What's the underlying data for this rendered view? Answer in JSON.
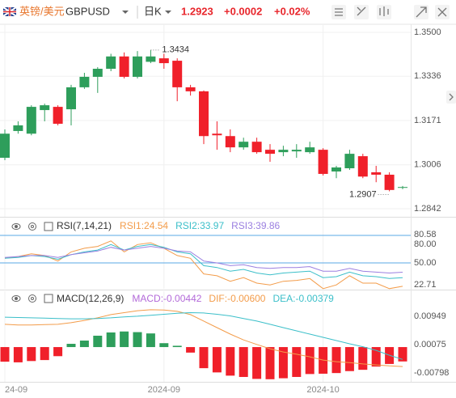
{
  "header": {
    "pair": "英镑/美元",
    "symbol": "GBPUSD",
    "period": "日K",
    "price": "1.2923",
    "change": "+0.0002",
    "change_pct": "+0.02%"
  },
  "chart_data": [
    {
      "type": "candlestick",
      "categories": [
        "24-09",
        null,
        null,
        null,
        null,
        null,
        null,
        null,
        null,
        null,
        null,
        null,
        "2024-09",
        null,
        null,
        null,
        null,
        null,
        null,
        null,
        null,
        null,
        null,
        null,
        "2024-10",
        null,
        null,
        null,
        null,
        null,
        null
      ],
      "open": [
        1.3032,
        1.3132,
        1.3122,
        1.321,
        1.3222,
        1.3213,
        1.3295,
        1.3334,
        1.3364,
        1.341,
        1.3334,
        1.339,
        1.3403,
        1.3394,
        1.3295,
        1.328,
        1.3122,
        1.3113,
        1.3071,
        1.3092,
        1.3062,
        1.3053,
        1.3056,
        1.3053,
        1.3062,
        1.2981,
        1.2993,
        1.3038,
        1.2978,
        1.2969,
        1.2921
      ],
      "high": [
        1.3138,
        1.3168,
        1.3228,
        1.3234,
        1.3228,
        1.3304,
        1.3349,
        1.337,
        1.342,
        1.3425,
        1.343,
        1.3434,
        1.342,
        1.3403,
        1.3304,
        1.3283,
        1.3168,
        1.3138,
        1.3107,
        1.3107,
        1.3083,
        1.3077,
        1.3083,
        1.3092,
        1.3068,
        1.3002,
        1.3062,
        1.3047,
        1.3002,
        1.2978,
        1.2927
      ],
      "low": [
        1.3023,
        1.3122,
        1.3116,
        1.3168,
        1.3153,
        1.3153,
        1.3289,
        1.3274,
        1.3355,
        1.3328,
        1.3328,
        1.3385,
        1.3364,
        1.3243,
        1.3264,
        1.3083,
        1.3062,
        1.3053,
        1.3062,
        1.3047,
        1.3017,
        1.3038,
        1.3032,
        1.3047,
        1.2966,
        1.2956,
        1.2987,
        1.2956,
        1.2941,
        1.2907,
        1.2915
      ],
      "close": [
        1.3122,
        1.3153,
        1.3222,
        1.3228,
        1.3159,
        1.3295,
        1.3334,
        1.3364,
        1.341,
        1.3334,
        1.341,
        1.341,
        1.3385,
        1.3295,
        1.328,
        1.3113,
        1.3116,
        1.3071,
        1.3092,
        1.3053,
        1.3047,
        1.3062,
        1.3062,
        1.3071,
        1.2972,
        1.2996,
        1.3047,
        1.2962,
        1.2969,
        1.2912,
        1.2923
      ],
      "up_color": "#2e9e5b",
      "down_color": "#f0202a",
      "ylim": [
        1.2812,
        1.353
      ],
      "yticks": [
        1.2842,
        1.3006,
        1.3171,
        1.3336,
        {
          "value": 1.35,
          "label": "1.3500"
        }
      ],
      "max_label": 1.3434,
      "min_label": 1.2907,
      "grid": true
    },
    {
      "type": "line",
      "title": "RSI(7,14,21)",
      "ylim": [
        21.8,
        98.5
      ],
      "yticks": [
        80.58,
        22.71
      ],
      "hlines": [
        {
          "value": 80,
          "label": "80.00"
        },
        {
          "value": 50,
          "label": "50.00"
        }
      ],
      "hline_color": "#5aa9e6",
      "series": [
        {
          "name": "RSI1:24.54",
          "color": "#f39c4a",
          "values": [
            55,
            57,
            60,
            58,
            52,
            62,
            66,
            68,
            74,
            62,
            70,
            72,
            66,
            58,
            55,
            38,
            36,
            30,
            34,
            28,
            26,
            30,
            31,
            33,
            22,
            26,
            36,
            28,
            28,
            22,
            24.54
          ]
        },
        {
          "name": "RSI2:33.97",
          "color": "#3bbfc9",
          "values": [
            55,
            56,
            58,
            57,
            54,
            59,
            62,
            64,
            70,
            64,
            68,
            70,
            67,
            62,
            60,
            47,
            45,
            41,
            43,
            39,
            37,
            39,
            40,
            41,
            34,
            35,
            40,
            36,
            35,
            33,
            33.97
          ]
        },
        {
          "name": "RSI3:39.86",
          "color": "#9b7fe0",
          "values": [
            56,
            57,
            58,
            58,
            56,
            59,
            61,
            63,
            67,
            64,
            66,
            68,
            66,
            63,
            62,
            52,
            50,
            47,
            48,
            45,
            44,
            45,
            45,
            46,
            41,
            41,
            44,
            41,
            40,
            39,
            39.86
          ]
        }
      ]
    },
    {
      "type": "macd",
      "title": "MACD(12,26,9)",
      "ylim": [
        -0.0107,
        0.0172
      ],
      "yticks": [
        0.00949,
        0.00075,
        -0.00798
      ],
      "up_color": "#2e9e5b",
      "down_color": "#f0202a",
      "series": [
        {
          "name": "MACD:-0.00442",
          "color": "#b36ad9",
          "style": "bar",
          "values": [
            -0.0045,
            -0.0047,
            -0.0043,
            -0.004,
            -0.0028,
            0.001,
            0.002,
            0.0035,
            0.0045,
            0.0048,
            0.0046,
            0.0042,
            0.0012,
            0.0004,
            -0.0017,
            -0.0065,
            -0.0078,
            -0.0088,
            -0.0092,
            -0.0098,
            -0.0099,
            -0.0096,
            -0.0092,
            -0.0083,
            -0.0082,
            -0.008,
            -0.0074,
            -0.007,
            -0.006,
            -0.0052,
            -0.00442
          ]
        },
        {
          "name": "DIF:-0.00600",
          "color": "#f39c4a",
          "style": "line",
          "values": [
            0.007,
            0.0068,
            0.0068,
            0.0069,
            0.007,
            0.0075,
            0.0082,
            0.009,
            0.01,
            0.0106,
            0.0112,
            0.0115,
            0.0114,
            0.011,
            0.01,
            0.008,
            0.006,
            0.004,
            0.0022,
            0.0008,
            -0.0005,
            -0.0015,
            -0.0022,
            -0.003,
            -0.004,
            -0.0045,
            -0.0048,
            -0.0052,
            -0.0055,
            -0.0058,
            -0.006
          ]
        },
        {
          "name": "DEA:-0.00379",
          "color": "#3bbfc9",
          "style": "line",
          "values": [
            0.0092,
            0.0091,
            0.009,
            0.0089,
            0.0088,
            0.0087,
            0.0087,
            0.0088,
            0.009,
            0.0093,
            0.0095,
            0.0098,
            0.0101,
            0.0104,
            0.0106,
            0.0105,
            0.0101,
            0.0096,
            0.0088,
            0.008,
            0.007,
            0.006,
            0.005,
            0.004,
            0.003,
            0.002,
            0.001,
            0.0001,
            -0.001,
            -0.0025,
            -0.00379
          ]
        }
      ]
    }
  ]
}
